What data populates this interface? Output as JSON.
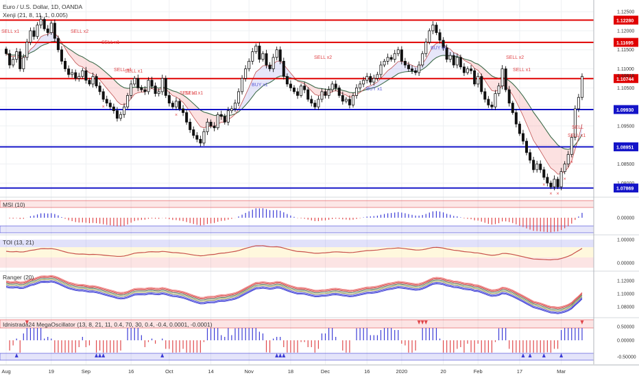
{
  "chart_data": {
    "type": "candlestick",
    "title": "Euro / U.S. Dollar, 1D, OANDA",
    "indicator_label": "Xenji (21, 8, 11, 1, 0.005)",
    "x_ticks": [
      "Aug",
      "19",
      "Sep",
      "16",
      "Oct",
      "14",
      "Nov",
      "18",
      "Dec",
      "16",
      "2020",
      "20",
      "Feb",
      "17",
      "Mar"
    ],
    "y_ticks": [
      "1.12500",
      "1.12000",
      "1.11500",
      "1.11000",
      "1.10500",
      "1.10000",
      "1.09500",
      "1.09000",
      "1.08500",
      "1.08000"
    ],
    "ylim": [
      1.077,
      1.127
    ],
    "current_price": "1.10818",
    "levels": [
      {
        "value": 1.1228,
        "label": "1.12280",
        "color": "#e00000"
      },
      {
        "value": 1.11695,
        "label": "1.11695",
        "color": "#e00000"
      },
      {
        "value": 1.10744,
        "label": "1.10744",
        "color": "#e00000"
      },
      {
        "value": 1.0993,
        "label": "1.09930",
        "color": "#1414c8"
      },
      {
        "value": 1.08951,
        "label": "1.08951",
        "color": "#1414c8"
      },
      {
        "value": 1.07869,
        "label": "1.07869",
        "color": "#1414c8"
      }
    ],
    "signals": [
      {
        "text": "SELL x1",
        "kind": "sell"
      },
      {
        "text": "SELL x2",
        "kind": "sell"
      },
      {
        "text": "SELL x1",
        "kind": "sell"
      },
      {
        "text": "SELL x1",
        "kind": "sell"
      },
      {
        "text": "SELL x1",
        "kind": "sell"
      },
      {
        "text": "SELL x1",
        "kind": "sell"
      },
      {
        "text": "SELL x1",
        "kind": "sell"
      },
      {
        "text": "BUY x1",
        "kind": "buy"
      },
      {
        "text": "SELL x2",
        "kind": "sell"
      },
      {
        "text": "BUY x1",
        "kind": "buy"
      },
      {
        "text": "BUY x1",
        "kind": "buy"
      },
      {
        "text": "SELL x2",
        "kind": "sell"
      },
      {
        "text": "SELL x1",
        "kind": "sell"
      },
      {
        "text": "SELL",
        "kind": "sell"
      },
      {
        "text": "SELL x1",
        "kind": "sell"
      }
    ],
    "closes": [
      1.114,
      1.111,
      1.1125,
      1.1145,
      1.11,
      1.113,
      1.117,
      1.12,
      1.1185,
      1.1215,
      1.123,
      1.1205,
      1.1195,
      1.122,
      1.118,
      1.115,
      1.112,
      1.11,
      1.1085,
      1.109,
      1.1075,
      1.108,
      1.1095,
      1.107,
      1.106,
      1.108,
      1.1055,
      1.104,
      1.102,
      1.101,
      1.1,
      1.099,
      1.097,
      1.098,
      1.1,
      1.103,
      1.106,
      1.1075,
      1.105,
      1.1045,
      1.104,
      1.107,
      1.1055,
      1.1035,
      1.104,
      1.1075,
      1.103,
      1.101,
      1.1,
      1.1015,
      1.0995,
      1.0985,
      1.096,
      1.094,
      1.0925,
      1.0915,
      1.0905,
      1.0935,
      1.096,
      1.095,
      1.0945,
      1.098,
      1.0975,
      1.096,
      1.099,
      1.0995,
      1.101,
      1.104,
      1.1075,
      1.11,
      1.112,
      1.1145,
      1.116,
      1.1125,
      1.114,
      1.111,
      1.11,
      1.113,
      1.115,
      1.112,
      1.108,
      1.106,
      1.105,
      1.104,
      1.103,
      1.1055,
      1.1045,
      1.102,
      1.101,
      1.1,
      1.102,
      1.104,
      1.103,
      1.1045,
      1.106,
      1.105,
      1.103,
      1.1015,
      1.102,
      1.1005,
      1.103,
      1.105,
      1.106,
      1.107,
      1.108,
      1.1065,
      1.1075,
      1.1085,
      1.111,
      1.112,
      1.113,
      1.1125,
      1.114,
      1.115,
      1.112,
      1.111,
      1.11,
      1.1095,
      1.109,
      1.111,
      1.114,
      1.117,
      1.12,
      1.1215,
      1.1195,
      1.1175,
      1.1155,
      1.1125,
      1.1135,
      1.111,
      1.113,
      1.1105,
      1.109,
      1.11,
      1.1095,
      1.106,
      1.108,
      1.104,
      1.102,
      1.1005,
      1.1,
      1.1035,
      1.1055,
      1.11,
      1.1045,
      1.101,
      1.0985,
      1.0955,
      1.093,
      1.091,
      1.088,
      1.086,
      1.0835,
      1.085,
      1.0835,
      1.0815,
      1.08,
      1.079,
      1.081,
      1.079,
      1.083,
      1.085,
      1.0875,
      1.092,
      1.0995,
      1.1025,
      1.108
    ],
    "panes": [
      {
        "label": "MSI (10)",
        "y_ticks": [
          "0.00000"
        ]
      },
      {
        "label": "TOI (13, 21)",
        "y_ticks": [
          "1.00000",
          "0.00000"
        ]
      },
      {
        "label": "Ranger (20)",
        "y_ticks": [
          "1.12000",
          "1.10000",
          "1.08000"
        ]
      },
      {
        "label": "Idnistrada24 MegaOscillator (13, 8, 21, 11, 0.4, 70, 30, 0.4, -0.4, 0.0001, -0.0001)",
        "y_ticks": [
          "0.50000",
          "0.00000",
          "-0.50000"
        ]
      }
    ]
  }
}
